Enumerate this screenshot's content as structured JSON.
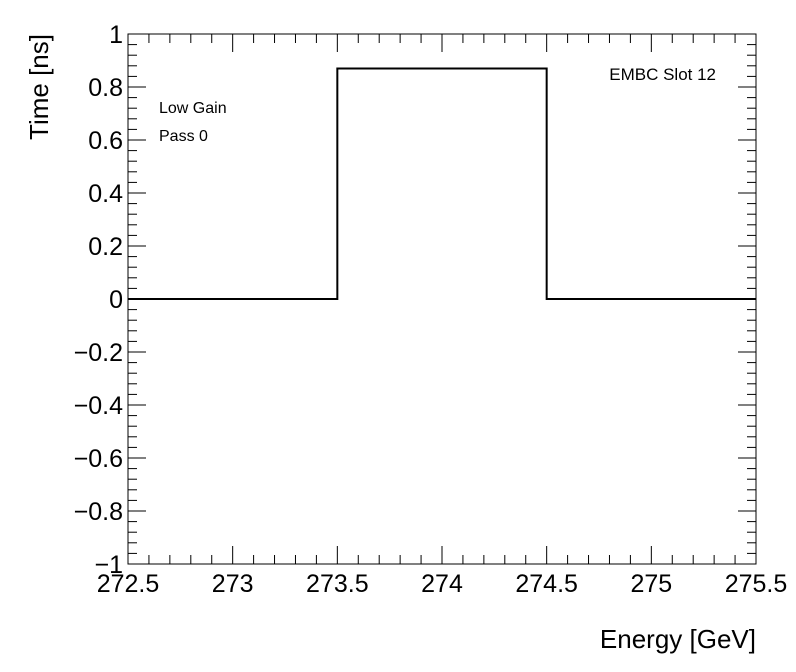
{
  "chart_data": {
    "type": "line",
    "step": true,
    "title": "",
    "xlabel": "Energy [GeV]",
    "ylabel": "Time [ns]",
    "xlim": [
      272.5,
      275.5
    ],
    "ylim": [
      -1,
      1
    ],
    "x_ticks": [
      272.5,
      273,
      273.5,
      274,
      274.5,
      275,
      275.5
    ],
    "x_tick_labels": [
      "272.5",
      "273",
      "273.5",
      "274",
      "274.5",
      "275",
      "275.5"
    ],
    "y_ticks": [
      -1,
      -0.8,
      -0.6,
      -0.4,
      -0.2,
      0,
      0.2,
      0.4,
      0.6,
      0.8,
      1
    ],
    "y_tick_labels": [
      "−1",
      "−0.8",
      "−0.6",
      "−0.4",
      "−0.2",
      "0",
      "0.2",
      "0.4",
      "0.6",
      "0.8",
      "1"
    ],
    "bins": [
      {
        "x_low": 272.5,
        "x_high": 273.5,
        "value": 0
      },
      {
        "x_low": 273.5,
        "x_high": 274.5,
        "value": 0.87
      },
      {
        "x_low": 274.5,
        "x_high": 275.5,
        "value": 0
      }
    ],
    "grid": false,
    "annotations": {
      "top_right": "EMBC Slot 12",
      "top_left_line1": "Low Gain",
      "top_left_line2": "Pass 0"
    },
    "colors": {
      "line": "#000000",
      "frame": "#000000",
      "background": "#ffffff"
    }
  }
}
